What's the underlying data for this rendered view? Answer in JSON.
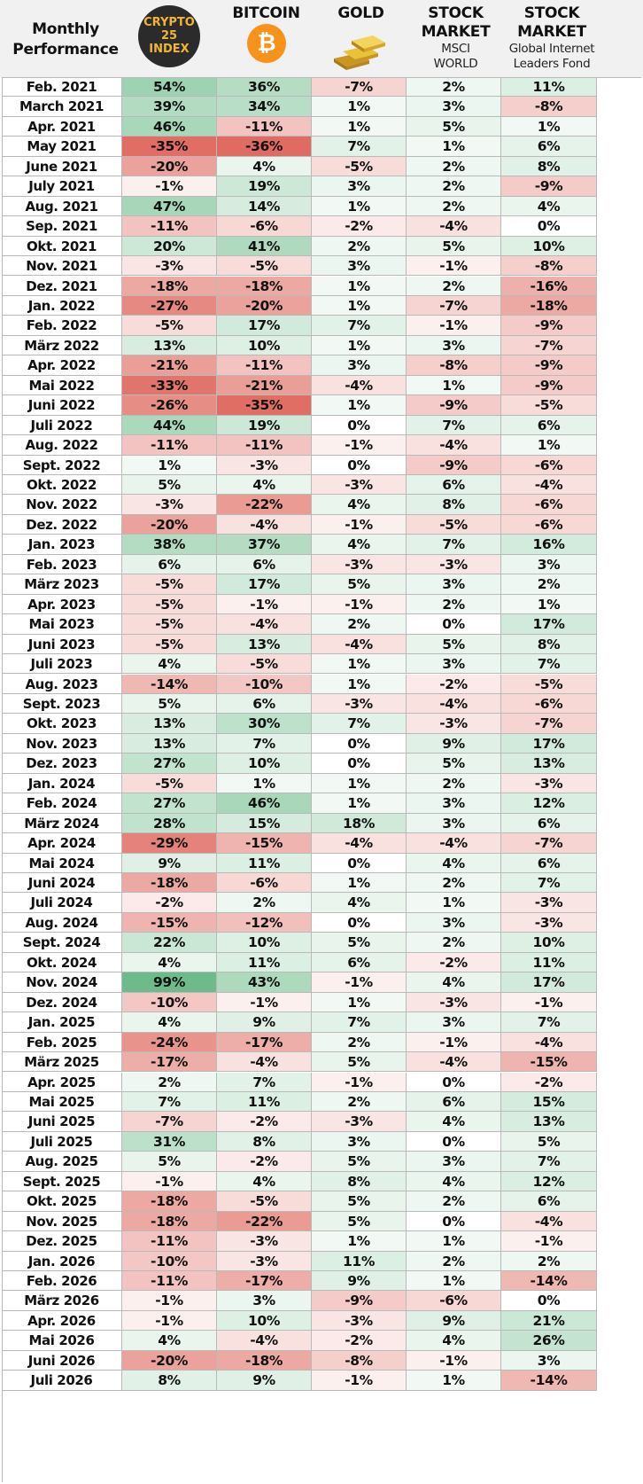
{
  "headers": {
    "monthly_performance": [
      "Monthly",
      "Performance"
    ],
    "crypto25": [
      "CRYPTO",
      "25",
      "INDEX"
    ],
    "bitcoin": "BITCOIN",
    "bitcoin_symbol": "₿",
    "gold": "GOLD",
    "msci": {
      "title": [
        "STOCK",
        "MARKET"
      ],
      "sub": [
        "MSCI",
        "WORLD"
      ]
    },
    "internet": {
      "title": [
        "STOCK",
        "MARKET"
      ],
      "sub": [
        "Global Internet",
        "Leaders Fond"
      ]
    }
  },
  "colors": {
    "header_bg": "#f1f1f1",
    "positive_max": "#6dbb8a",
    "negative_max": "#df6b62",
    "crypto_logo": "#2b2b2b",
    "crypto_text": "#f2b632",
    "bitcoin_logo": "#f7931a",
    "gold_bar": "#e8c23c"
  },
  "icons": {
    "crypto25": "crypto-25-index-icon",
    "bitcoin": "bitcoin-icon",
    "gold": "gold-bars-icon"
  },
  "chart_data": {
    "type": "table",
    "title": "Monthly Performance",
    "columns": [
      "CRYPTO 25 INDEX",
      "BITCOIN",
      "GOLD",
      "STOCK MARKET MSCI WORLD",
      "STOCK MARKET Global Internet Leaders Fond"
    ],
    "rows": [
      {
        "month": "Feb. 2021",
        "values": [
          "54%",
          "36%",
          "-7%",
          "2%",
          "11%"
        ]
      },
      {
        "month": "March 2021",
        "values": [
          "39%",
          "34%",
          "1%",
          "3%",
          "-8%"
        ]
      },
      {
        "month": "Apr. 2021",
        "values": [
          "46%",
          "-11%",
          "1%",
          "5%",
          "1%"
        ]
      },
      {
        "month": "May 2021",
        "values": [
          "-35%",
          "-36%",
          "7%",
          "1%",
          "6%"
        ]
      },
      {
        "month": "June 2021",
        "values": [
          "-20%",
          "4%",
          "-5%",
          "2%",
          "8%"
        ]
      },
      {
        "month": "July 2021",
        "values": [
          "-1%",
          "19%",
          "3%",
          "2%",
          "-9%"
        ]
      },
      {
        "month": "Aug. 2021",
        "values": [
          "47%",
          "14%",
          "1%",
          "2%",
          "4%"
        ]
      },
      {
        "month": "Sep. 2021",
        "values": [
          "-11%",
          "-6%",
          "-2%",
          "-4%",
          "0%"
        ]
      },
      {
        "month": "Okt. 2021",
        "values": [
          "20%",
          "41%",
          "2%",
          "5%",
          "10%"
        ]
      },
      {
        "month": "Nov. 2021",
        "values": [
          "-3%",
          "-5%",
          "3%",
          "-1%",
          "-8%"
        ]
      },
      {
        "month": "Dez. 2021",
        "values": [
          "-18%",
          "-18%",
          "1%",
          "2%",
          "-16%"
        ]
      },
      {
        "month": "Jan. 2022",
        "values": [
          "-27%",
          "-20%",
          "1%",
          "-7%",
          "-18%"
        ]
      },
      {
        "month": "Feb. 2022",
        "values": [
          "-5%",
          "17%",
          "7%",
          "-1%",
          "-9%"
        ]
      },
      {
        "month": "März 2022",
        "values": [
          "13%",
          "10%",
          "1%",
          "3%",
          "-7%"
        ]
      },
      {
        "month": "Apr. 2022",
        "values": [
          "-21%",
          "-11%",
          "3%",
          "-8%",
          "-9%"
        ]
      },
      {
        "month": "Mai 2022",
        "values": [
          "-33%",
          "-21%",
          "-4%",
          "1%",
          "-9%"
        ]
      },
      {
        "month": "Juni 2022",
        "values": [
          "-26%",
          "-35%",
          "1%",
          "-9%",
          "-5%"
        ]
      },
      {
        "month": "Juli 2022",
        "values": [
          "44%",
          "19%",
          "0%",
          "7%",
          "6%"
        ]
      },
      {
        "month": "Aug. 2022",
        "values": [
          "-11%",
          "-11%",
          "-1%",
          "-4%",
          "1%"
        ]
      },
      {
        "month": "Sept. 2022",
        "values": [
          "1%",
          "-3%",
          "0%",
          "-9%",
          "-6%"
        ]
      },
      {
        "month": "Okt. 2022",
        "values": [
          "5%",
          "4%",
          "-3%",
          "6%",
          "-4%"
        ]
      },
      {
        "month": "Nov. 2022",
        "values": [
          "-3%",
          "-22%",
          "4%",
          "8%",
          "-6%"
        ]
      },
      {
        "month": "Dez. 2022",
        "values": [
          "-20%",
          "-4%",
          "-1%",
          "-5%",
          "-6%"
        ]
      },
      {
        "month": "Jan. 2023",
        "values": [
          "38%",
          "37%",
          "4%",
          "7%",
          "16%"
        ]
      },
      {
        "month": "Feb. 2023",
        "values": [
          "6%",
          "6%",
          "-3%",
          "-3%",
          "3%"
        ]
      },
      {
        "month": "März 2023",
        "values": [
          "-5%",
          "17%",
          "5%",
          "3%",
          "2%"
        ]
      },
      {
        "month": "Apr. 2023",
        "values": [
          "-5%",
          "-1%",
          "-1%",
          "2%",
          "1%"
        ]
      },
      {
        "month": "Mai 2023",
        "values": [
          "-5%",
          "-4%",
          "2%",
          "0%",
          "17%"
        ]
      },
      {
        "month": "Juni 2023",
        "values": [
          "-5%",
          "13%",
          "-4%",
          "5%",
          "8%"
        ]
      },
      {
        "month": "Juli 2023",
        "values": [
          "4%",
          "-5%",
          "1%",
          "3%",
          "7%"
        ]
      },
      {
        "month": "Aug. 2023",
        "values": [
          "-14%",
          "-10%",
          "1%",
          "-2%",
          "-5%"
        ]
      },
      {
        "month": "Sept. 2023",
        "values": [
          "5%",
          "6%",
          "-3%",
          "-4%",
          "-6%"
        ]
      },
      {
        "month": "Okt. 2023",
        "values": [
          "13%",
          "30%",
          "7%",
          "-3%",
          "-7%"
        ]
      },
      {
        "month": "Nov. 2023",
        "values": [
          "13%",
          "7%",
          "0%",
          "9%",
          "17%"
        ]
      },
      {
        "month": "Dez. 2023",
        "values": [
          "27%",
          "10%",
          "0%",
          "5%",
          "13%"
        ]
      },
      {
        "month": "Jan. 2024",
        "values": [
          "-5%",
          "1%",
          "1%",
          "2%",
          "-3%"
        ]
      },
      {
        "month": "Feb. 2024",
        "values": [
          "27%",
          "46%",
          "1%",
          "3%",
          "12%"
        ]
      },
      {
        "month": "März 2024",
        "values": [
          "28%",
          "15%",
          "18%",
          "3%",
          "6%"
        ]
      },
      {
        "month": "Apr. 2024",
        "values": [
          "-29%",
          "-15%",
          "-4%",
          "-4%",
          "-7%"
        ]
      },
      {
        "month": "Mai 2024",
        "values": [
          "9%",
          "11%",
          "0%",
          "4%",
          "6%"
        ]
      },
      {
        "month": "Juni 2024",
        "values": [
          "-18%",
          "-6%",
          "1%",
          "2%",
          "7%"
        ]
      },
      {
        "month": "Juli 2024",
        "values": [
          "-2%",
          "2%",
          "4%",
          "1%",
          "-3%"
        ]
      },
      {
        "month": "Aug. 2024",
        "values": [
          "-15%",
          "-12%",
          "0%",
          "3%",
          "-3%"
        ]
      },
      {
        "month": "Sept. 2024",
        "values": [
          "22%",
          "10%",
          "5%",
          "2%",
          "10%"
        ]
      },
      {
        "month": "Okt. 2024",
        "values": [
          "4%",
          "11%",
          "6%",
          "-2%",
          "11%"
        ]
      },
      {
        "month": "Nov. 2024",
        "values": [
          "99%",
          "43%",
          "-1%",
          "4%",
          "17%"
        ]
      },
      {
        "month": "Dez. 2024",
        "values": [
          "-10%",
          "-1%",
          "1%",
          "-3%",
          "-1%"
        ]
      },
      {
        "month": "Jan. 2025",
        "values": [
          "4%",
          "9%",
          "7%",
          "3%",
          "7%"
        ]
      },
      {
        "month": "Feb. 2025",
        "values": [
          "-24%",
          "-17%",
          "2%",
          "-1%",
          "-4%"
        ]
      },
      {
        "month": "März 2025",
        "values": [
          "-17%",
          "-4%",
          "5%",
          "-4%",
          "-15%"
        ]
      },
      {
        "month": "Apr. 2025",
        "values": [
          "2%",
          "7%",
          "-1%",
          "0%",
          "-2%"
        ]
      },
      {
        "month": "Mai 2025",
        "values": [
          "7%",
          "11%",
          "2%",
          "6%",
          "15%"
        ]
      },
      {
        "month": "Juni 2025",
        "values": [
          "-7%",
          "-2%",
          "-3%",
          "4%",
          "13%"
        ]
      },
      {
        "month": "Juli 2025",
        "values": [
          "31%",
          "8%",
          "3%",
          "0%",
          "5%"
        ]
      },
      {
        "month": "Aug. 2025",
        "values": [
          "5%",
          "-2%",
          "5%",
          "3%",
          "7%"
        ]
      },
      {
        "month": "Sept. 2025",
        "values": [
          "-1%",
          "4%",
          "8%",
          "4%",
          "12%"
        ]
      },
      {
        "month": "Okt. 2025",
        "values": [
          "-18%",
          "-5%",
          "5%",
          "2%",
          "6%"
        ]
      },
      {
        "month": "Nov. 2025",
        "values": [
          "-18%",
          "-22%",
          "5%",
          "0%",
          "-4%"
        ]
      },
      {
        "month": "Dez. 2025",
        "values": [
          "-11%",
          "-3%",
          "1%",
          "1%",
          "-1%"
        ]
      },
      {
        "month": "Jan. 2026",
        "values": [
          "-10%",
          "-3%",
          "11%",
          "2%",
          "2%"
        ]
      },
      {
        "month": "Feb. 2026",
        "values": [
          "-11%",
          "-17%",
          "9%",
          "1%",
          "-14%"
        ]
      },
      {
        "month": "März 2026",
        "values": [
          "-1%",
          "3%",
          "-9%",
          "-6%",
          "0%"
        ]
      },
      {
        "month": "Apr. 2026",
        "values": [
          "-1%",
          "10%",
          "-3%",
          "9%",
          "21%"
        ]
      },
      {
        "month": "Mai 2026",
        "values": [
          "4%",
          "-4%",
          "-2%",
          "4%",
          "26%"
        ]
      },
      {
        "month": "Juni 2026",
        "values": [
          "-20%",
          "-18%",
          "-8%",
          "-1%",
          "3%"
        ]
      },
      {
        "month": "Juli 2026",
        "values": [
          "8%",
          "9%",
          "-1%",
          "1%",
          "-14%"
        ]
      }
    ]
  }
}
